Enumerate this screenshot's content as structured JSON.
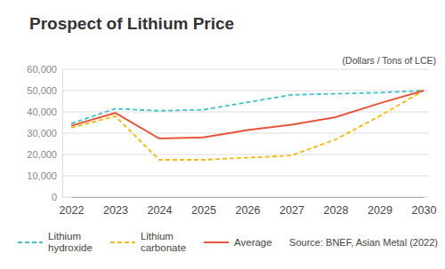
{
  "chart_data": {
    "type": "line",
    "title": "Prospect of Lithium Price",
    "subtitle": "(Dollars / Tons of LCE)",
    "source": "Source: BNEF, Asian Metal (2022)",
    "categories": [
      "2022",
      "2023",
      "2024",
      "2025",
      "2026",
      "2027",
      "2028",
      "2029",
      "2030"
    ],
    "series": [
      {
        "name": "Lithium hydroxide",
        "color": "#3fbfd0",
        "line_style": "dashed",
        "values": [
          34500,
          41500,
          40500,
          41000,
          44500,
          48000,
          48500,
          49000,
          50000
        ]
      },
      {
        "name": "Lithium carbonate",
        "color": "#f5b80a",
        "line_style": "dashed",
        "values": [
          32500,
          38000,
          17500,
          17500,
          18500,
          19500,
          27000,
          38000,
          50000
        ]
      },
      {
        "name": "Average",
        "color": "#e9553b",
        "line_style": "solid",
        "values": [
          33500,
          39500,
          27500,
          28000,
          31500,
          34000,
          37500,
          44000,
          50000
        ]
      }
    ],
    "ylim": [
      0,
      60000
    ],
    "yticks": [
      0,
      {
        "value": 10000,
        "label": "10,000"
      },
      {
        "value": 20000,
        "label": "20,000"
      },
      {
        "value": 30000,
        "label": "30,000"
      },
      {
        "value": 40000,
        "label": "40,000"
      },
      {
        "value": 50000,
        "label": "50,000"
      },
      {
        "value": 60000,
        "label": "60,000"
      }
    ],
    "grid": true,
    "legend": "bottom-left"
  }
}
